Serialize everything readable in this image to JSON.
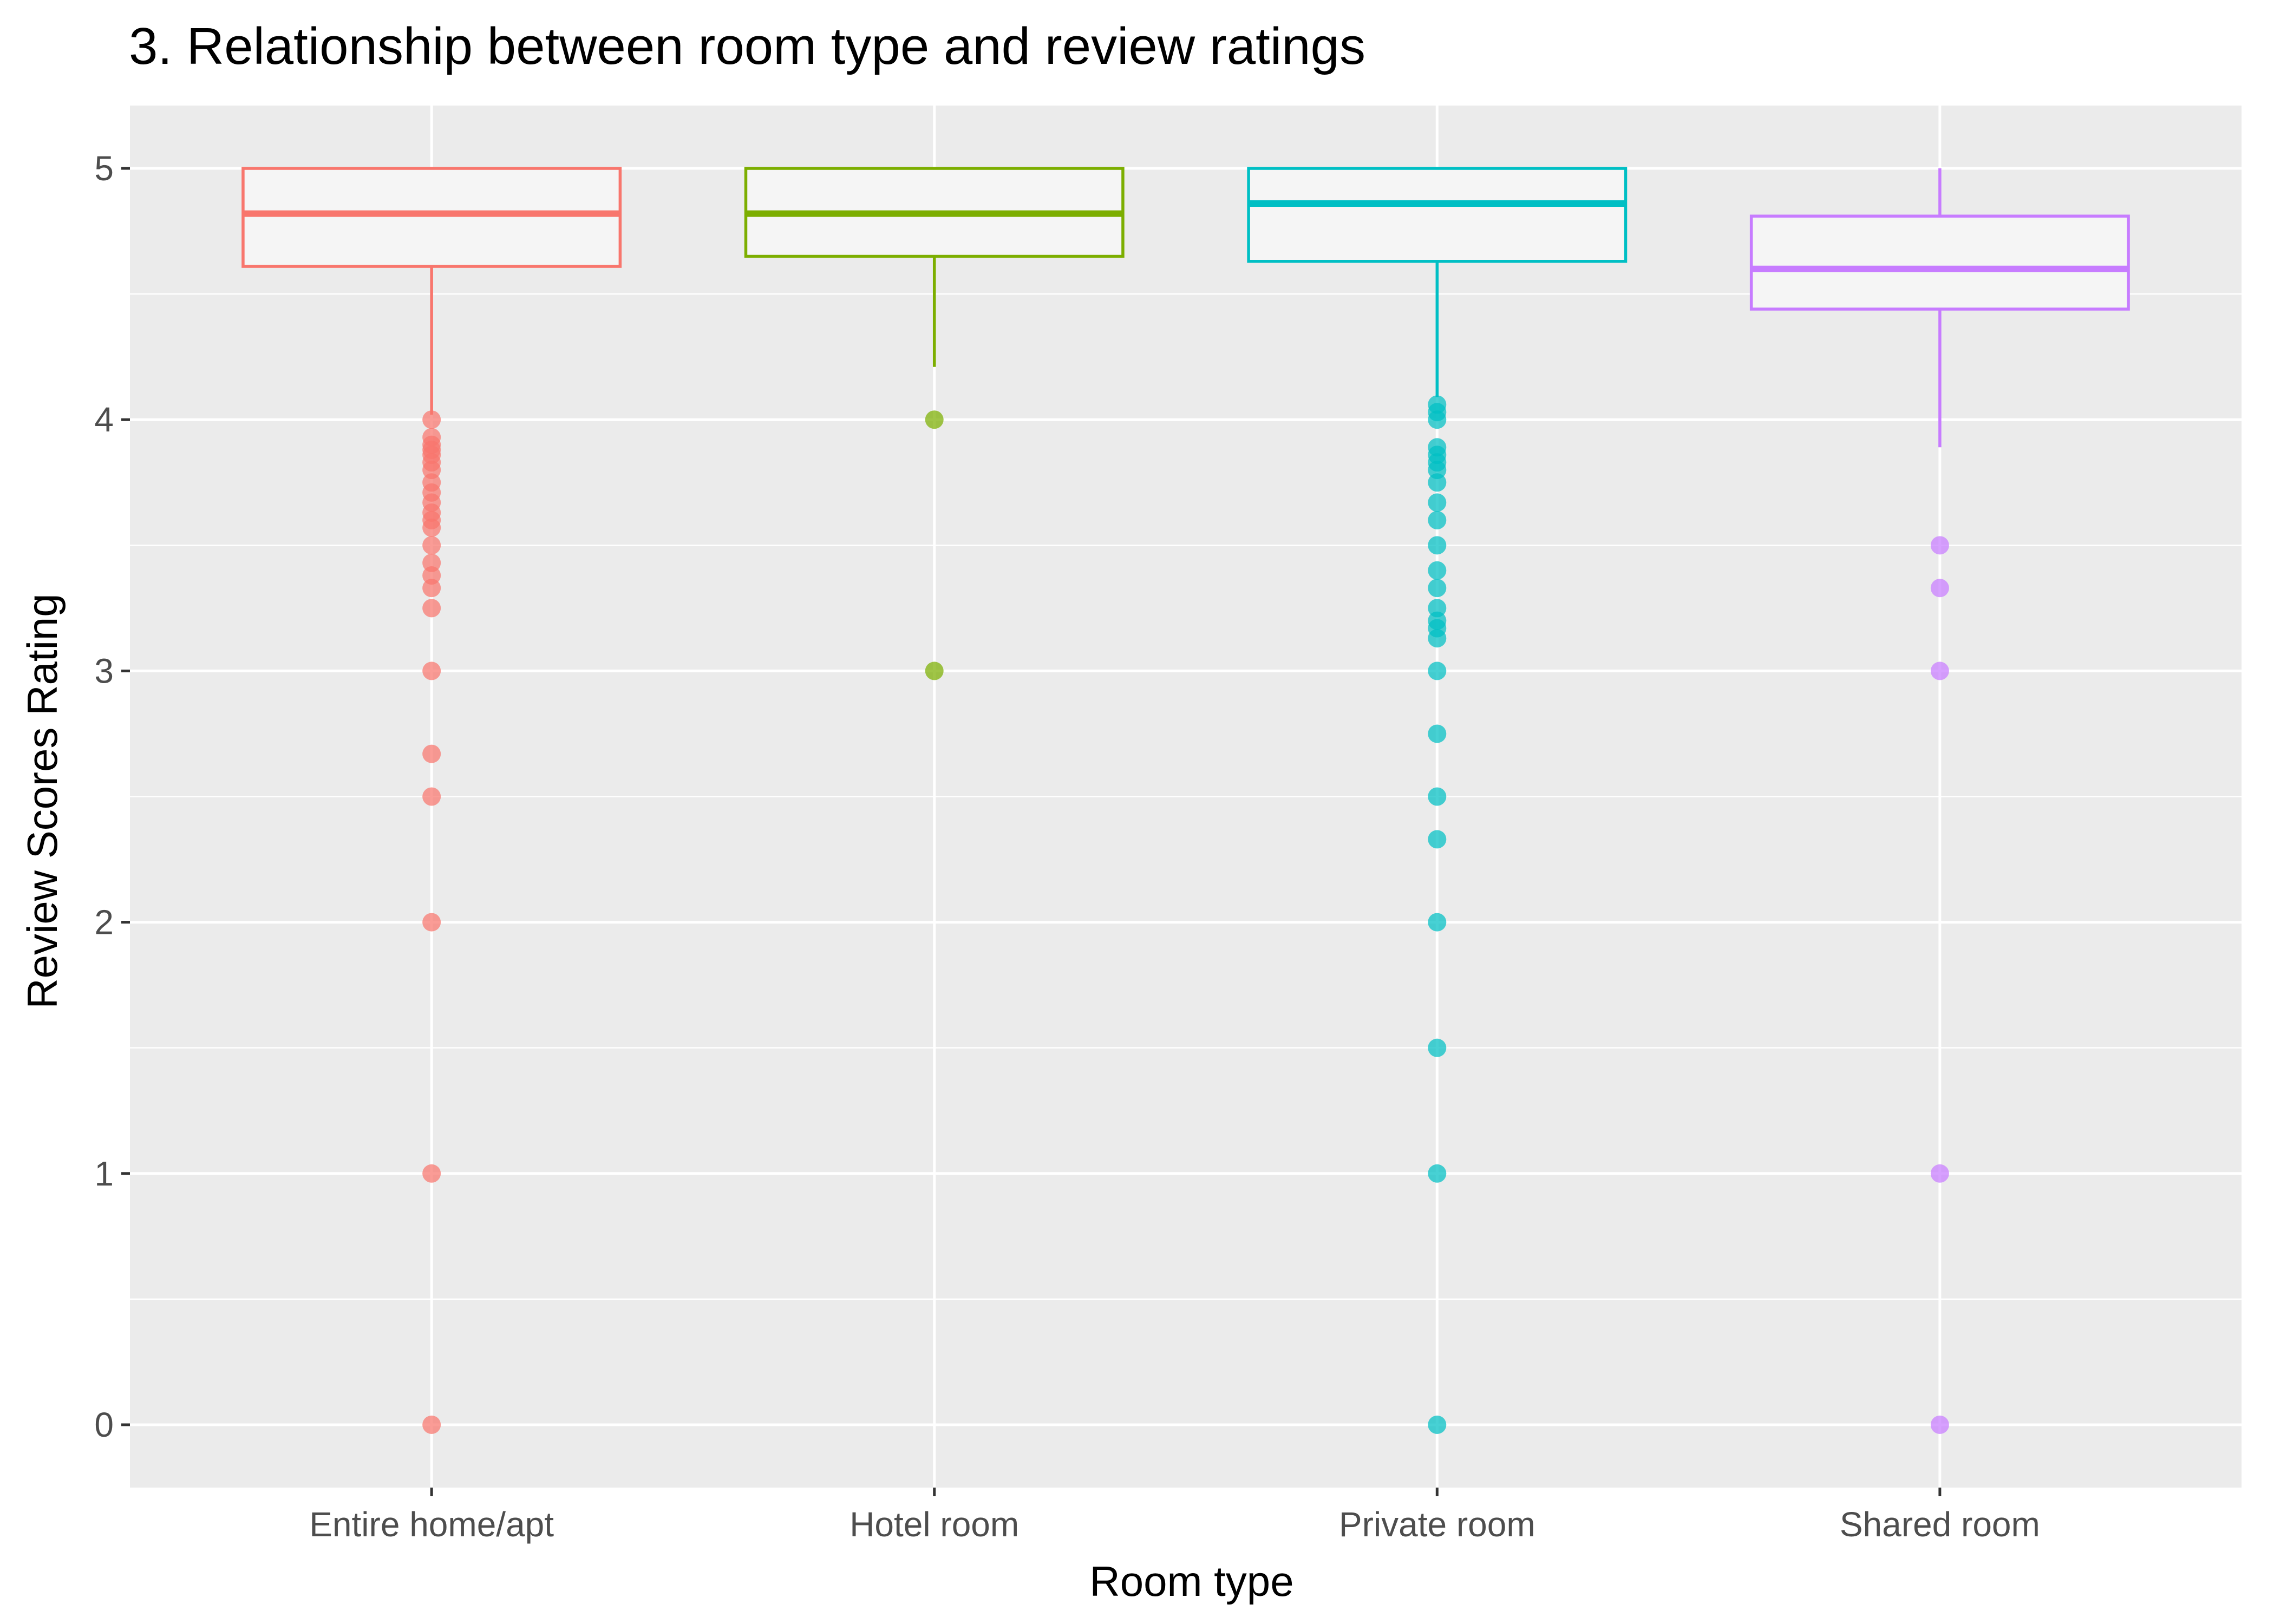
{
  "chart_data": {
    "type": "boxplot",
    "title": "3. Relationship between room type and review ratings",
    "xlabel": "Room type",
    "ylabel": "Review Scores Rating",
    "ylim": [
      -0.25,
      5.25
    ],
    "yticks": [
      0,
      1,
      2,
      3,
      4,
      5
    ],
    "grid": true,
    "legend": "none",
    "categories": [
      "Entire home/apt",
      "Hotel room",
      "Private room",
      "Shared room"
    ],
    "series": [
      {
        "category": "Entire home/apt",
        "color": "#F8766D",
        "q1": 4.61,
        "median": 4.82,
        "q3": 5.0,
        "whisker_low": 4.02,
        "whisker_high": 5.0,
        "outliers": [
          4.0,
          3.93,
          3.9,
          3.88,
          3.86,
          3.83,
          3.8,
          3.75,
          3.71,
          3.67,
          3.63,
          3.6,
          3.57,
          3.5,
          3.43,
          3.38,
          3.33,
          3.25,
          3.0,
          2.67,
          2.5,
          2.0,
          1.0,
          0.0
        ]
      },
      {
        "category": "Hotel room",
        "color": "#7CAE00",
        "q1": 4.65,
        "median": 4.82,
        "q3": 5.0,
        "whisker_low": 4.21,
        "whisker_high": 5.0,
        "outliers": [
          4.0,
          3.0
        ]
      },
      {
        "category": "Private room",
        "color": "#00BFC4",
        "q1": 4.63,
        "median": 4.86,
        "q3": 5.0,
        "whisker_low": 4.09,
        "whisker_high": 5.0,
        "outliers": [
          4.06,
          4.03,
          4.0,
          3.89,
          3.86,
          3.83,
          3.8,
          3.75,
          3.67,
          3.6,
          3.5,
          3.4,
          3.33,
          3.25,
          3.2,
          3.17,
          3.13,
          3.0,
          2.75,
          2.5,
          2.33,
          2.0,
          1.5,
          1.0,
          0.0
        ]
      },
      {
        "category": "Shared room",
        "color": "#C77CFF",
        "q1": 4.44,
        "median": 4.6,
        "q3": 4.81,
        "whisker_low": 3.89,
        "whisker_high": 5.0,
        "outliers": [
          3.5,
          3.33,
          3.0,
          1.0,
          0.0
        ]
      }
    ]
  }
}
